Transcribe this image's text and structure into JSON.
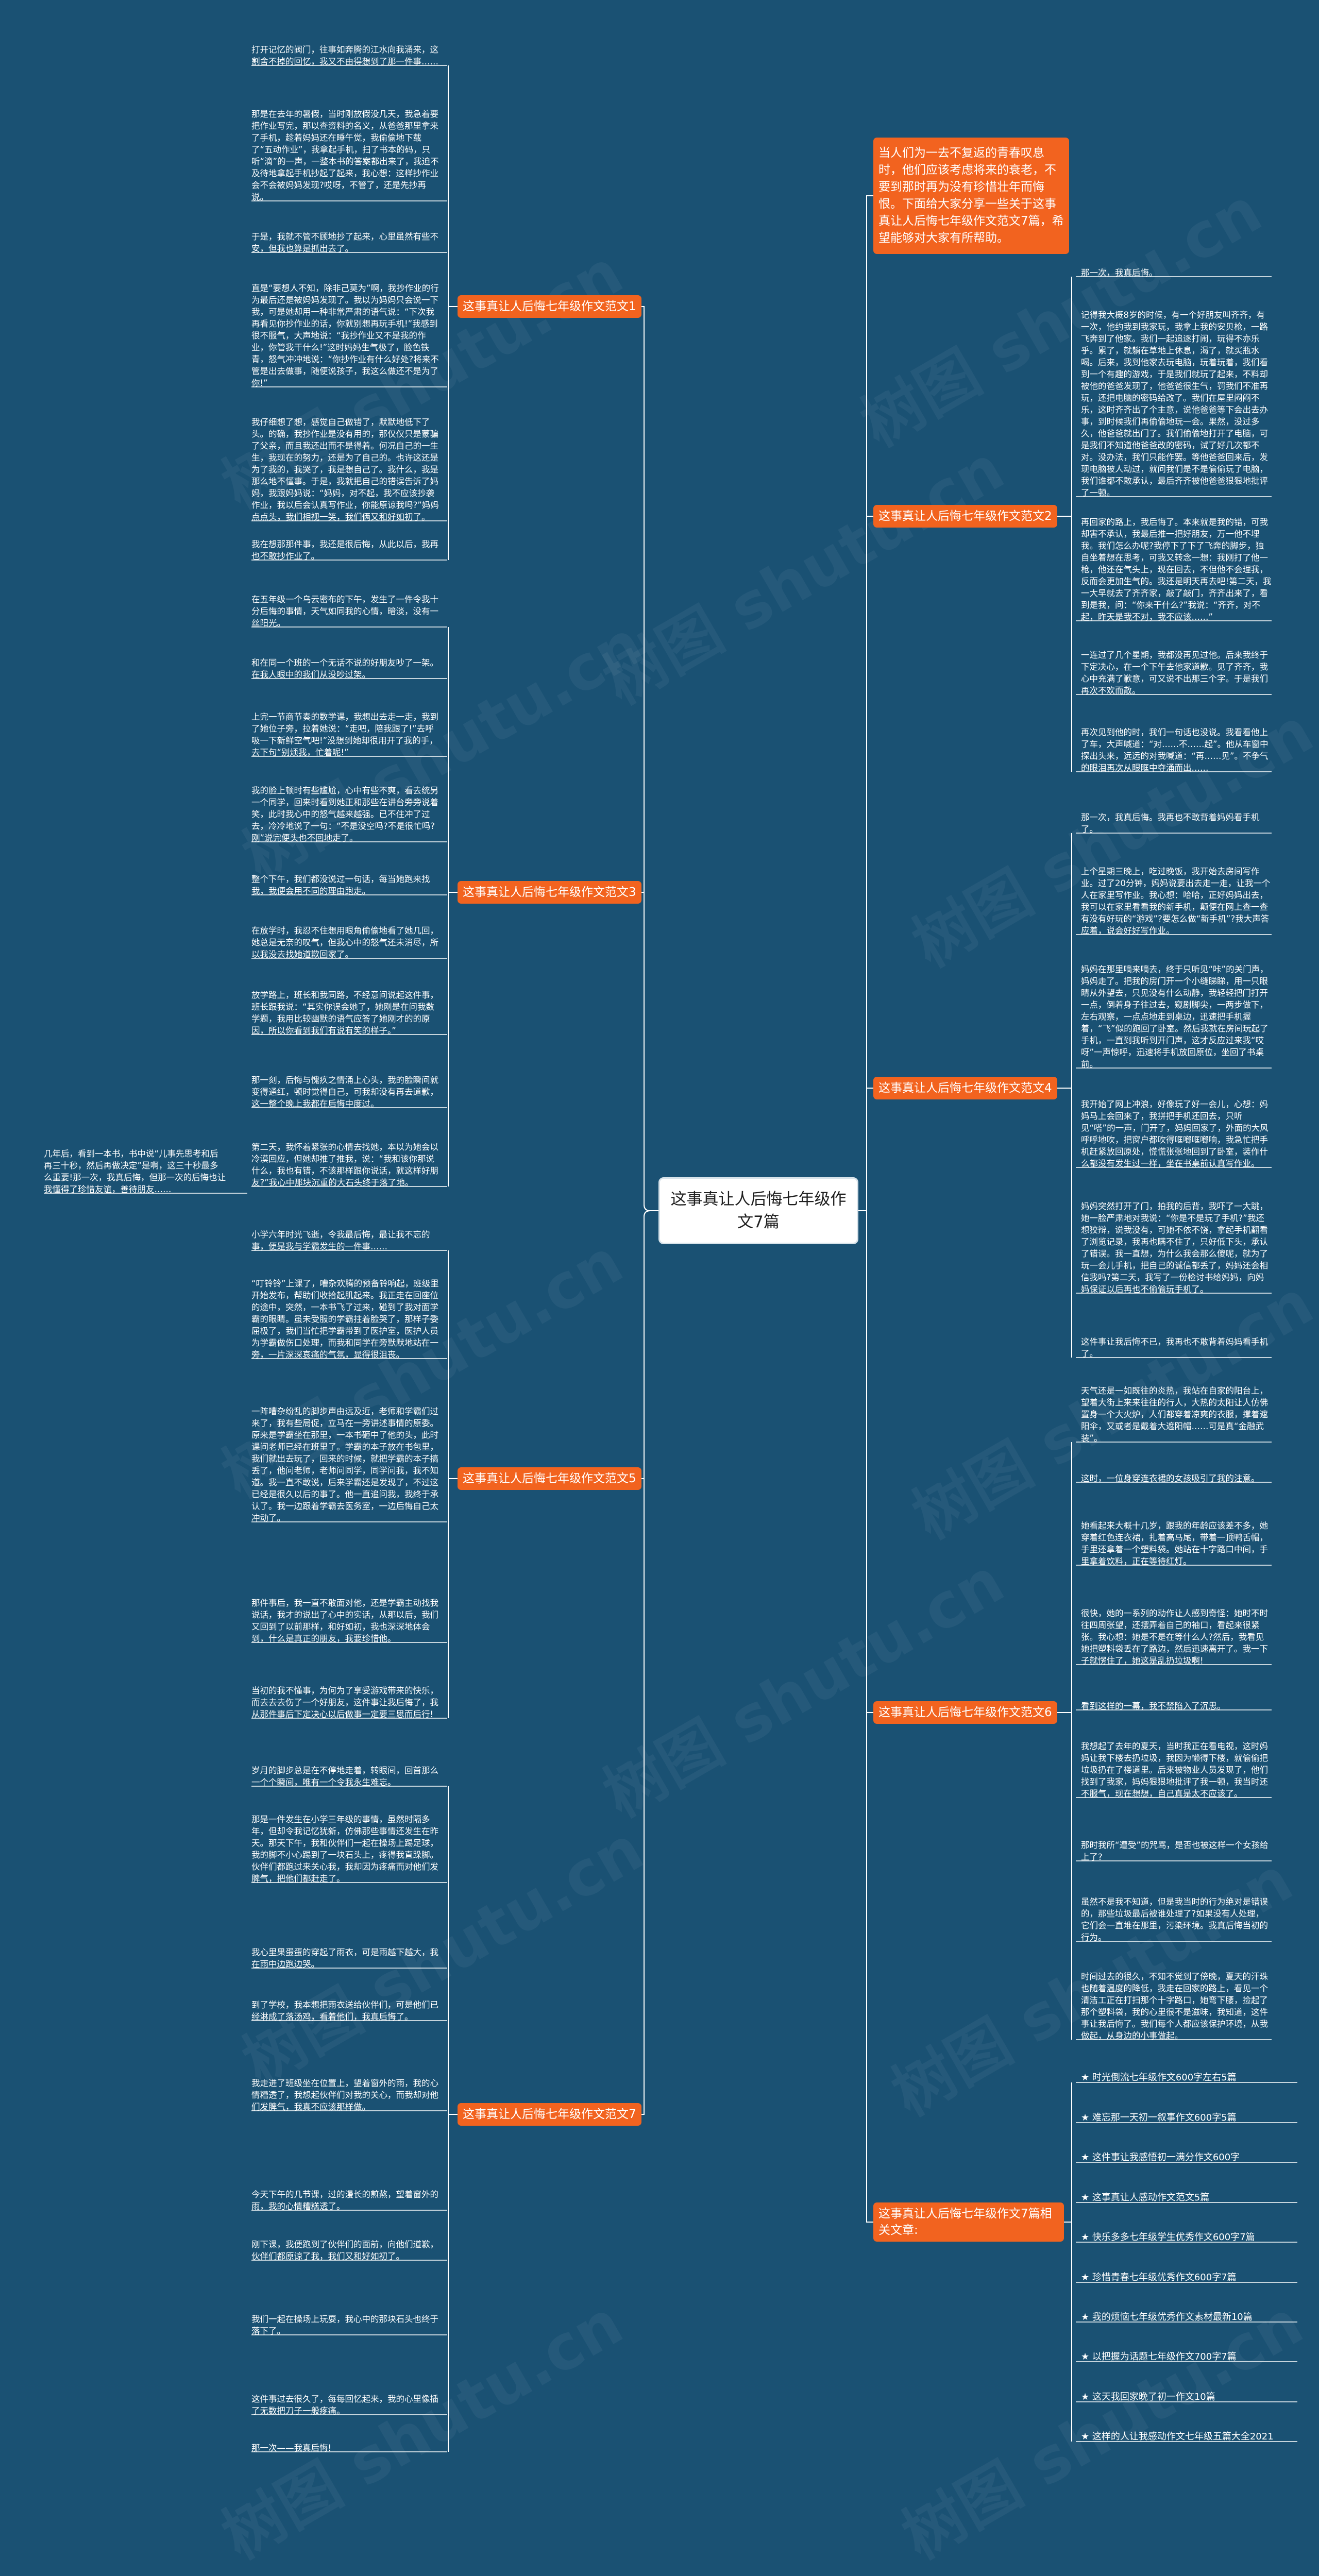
{
  "root": "这事真让人后悔七年级作文7篇",
  "intro": "当人们为一去不复返的青春叹息时，他们应该考虑将来的衰老，不要到那时再为没有珍惜壮年而悔恨。下面给大家分享一些关于这事真让人后悔七年级作文范文7篇，希望能够对大家有所帮助。",
  "branches": {
    "b1": "这事真让人后悔七年级作文范文1",
    "b2": "这事真让人后悔七年级作文范文2",
    "b3": "这事真让人后悔七年级作文范文3",
    "b4": "这事真让人后悔七年级作文范文4",
    "b5": "这事真让人后悔七年级作文范文5",
    "b6": "这事真让人后悔七年级作文范文6",
    "b7": "这事真让人后悔七年级作文范文7",
    "b8": "这事真让人后悔七年级作文7篇相关文章:"
  },
  "leaves_b1": [
    "打开记忆的阀门，往事如奔腾的江水向我涌来，这割舍不掉的回忆，我又不由得想到了那一件事……",
    "那是在去年的暑假，当时刚放假没几天，我急着要把作业写完，那以查资料的名义，从爸爸那里拿来了手机，趁着妈妈还在睡午觉，我偷偷地下载了“五动作业”，我拿起手机，扫了书本的码，只听“滴”的一声，一整本书的答案都出来了，我迫不及待地拿起手机抄起了起来，我心想：这样抄作业会不会被妈妈发现?哎呀，不管了，还是先抄再说。",
    "于是，我就不管不顾地抄了起来，心里虽然有些不安，但我也算是抓出去了。",
    "直是“要想人不知，除非己莫为”啊，我抄作业的行为最后还是被妈妈发现了。我以为妈妈只会说一下我，可是她却用一种非常严肃的语气说：“下次我再看见你抄作业的话，你就别想再玩手机!”我感到很不服气，大声地说：“我抄作业又不是我的作业，你管我干什么!”这时妈妈生气极了，脸色铁青，怒气冲冲地说：“你抄作业有什么好处?将来不管是出去做事，随便说孩子，我这么做还不是为了你!”",
    "我仔细想了想，感觉自己做错了，默默地低下了头。的确，我抄作业是没有用的，那仅仅只是蒙骗了父亲，而且我还出而不是得着。何况自己的一生生，我现在的努力，还是为了自己的。也许这还是为了我的，我哭了，我是想自己了。我什么，我是那么地不懂事。于是，我就把自己的错误告诉了妈妈，我跟妈妈说：“妈妈，对不起，我不应该抄袭作业，我以后会认真写作业，你能原谅我吗?”妈妈点点头，我们相视一笑，我们俩又和好如初了。",
    "我在想那那件事，我还是很后悔，从此以后，我再也不敢抄作业了。"
  ],
  "leaves_b2": [
    "那一次，我真后悔。",
    "记得我大概8岁的时候，有一个好朋友叫齐齐，有一次，他约我到我家玩，我拿上我的安贝枪，一路飞奔到了他家。我们一起追逐打闹，玩得不亦乐乎。累了，就躺在草地上休息，渴了，就买瓶水喝。后来，我到他家去玩电脑，玩着玩着，我们看到一个有趣的游戏，于是我们就玩了起来，不料却被他的爸爸发现了，他爸爸很生气，罚我们不准再玩，还把电脑的密码给改了。我们在屋里闷闷不乐，这时齐齐出了个主意，说他爸爸等下会出去办事，到时候我们再偷偷地玩一会。果然，没过多久，他爸爸就出门了。我们偷偷地打开了电脑，可是我们不知道他爸爸改的密码，试了好几次都不对。没办法，我们只能作罢。等他爸爸回来后，发现电脑被人动过，就问我们是不是偷偷玩了电脑，我们谁都不敢承认，最后齐齐被他爸爸狠狠地批评了一顿。",
    "再回家的路上，我后悔了。本来就是我的错，可我却害不承认，我最后推一把好朋友，万一他不埋我。我们怎么办呢?我停下了下了飞奔的脚步，独自坐着想在思考，可我又转念一想：我刚打了他一枪，他还在气头上，现在回去，不但他不会理我，反而会更加生气的。我还是明天再去吧!第二天，我一大早就去了齐齐家，敲了敲门，齐齐出来了，看到是我，问：“你来干什么?”我说：“齐齐，对不起，昨天是我不对，我不应该……”",
    "一连过了几个星期，我都没再见过他。后来我终于下定决心，在一个下午去他家道歉。见了齐齐，我心中充满了歉意，可又说不出那三个字。于是我们再次不欢而散。",
    "再次见到他的时，我们一句话也没说。我看看他上了车，大声喊道：“对……不……起”。他从车窗中探出头来，远远的对我喊道：“再……见”。不争气的眼泪再次从眼眶中夺涌而出……"
  ],
  "leaves_b3": [
    "在五年级一个乌云密布的下午，发生了一件令我十分后悔的事情，天气如同我的心情，暗淡，没有一丝阳光。",
    "和在同一个班的一个无话不说的好朋友吵了一架。在我人眼中的我们从没吵过架。",
    "上完一节商节奏的数学课，我想出去走一走，我到了她位子旁，拉着她说：“走吧，陪我跟了!”去呼吸一下新鲜空气吧!”没想到她却很用开了我的手，去下句“别烦我，忙着呢!”",
    "我的脸上顿时有些尴尬，心中有些不爽，看去统另一个同学，回来时看到她正和那些在讲台旁旁说着笑，此时我心中的怒气越来越强。已不住冲了过去，冷冷地说了一句：“不是没空吗?不是很忙吗?刚”说完便头也不回地走了。",
    "整个下午，我们都没说过一句话，每当她跑来找我，我便会用不同的理由跑走。",
    "在放学时，我忍不住想用眼角偷偷地看了她几回，她总是无奈的叹气，但我心中的怒气还未消尽，所以我没去找她道歉回家了。",
    "放学路上，班长和我同路，不经意间说起这件事，班长跟我说：“其实你误会她了，她刚是在问我数学题，我用比较幽默的语气应答了她刚才的的原因，所以你看到我们有说有笑的样子。”",
    "那一刻，后悔与愧疚之情涌上心头，我的脸瞬间就变得通红，顿时觉得自己，可我却没有再去道歉，这一整个晚上我都在后悔中度过。",
    "第二天，我怀着紧张的心情去找她，本以为她会以冷漠回应，但她却推了推我，说：“我和该你那说什么，我也有错，不该那样跟你说话，就这样好朋友?”我心中那块沉重的大石头终于落了地。"
  ],
  "side_leaf": "几年后，看到一本书，书中说“儿事先思考和后再三十秒，然后再做决定”是啊，这三十秒最多么重要!那一次，我真后悔，但那一次的后悔也让我懂得了珍惜友谊，善待朋友……",
  "leaves_b4": [
    "那一次，我真后悔。我再也不敢背着妈妈看手机了。",
    "上个星期三晚上，吃过晚饭，我开始去房间写作业。过了20分钟，妈妈说要出去走一走，让我一个人在家里写作业。我心想：哈哈，正好妈妈出去，我可以在家里看看我的新手机，颠便在网上查一查有没有好玩的“游戏”?要怎么做“新手机”?我大声答应着，说会好好写作业。",
    "妈妈在那里嘀来嘀去，终于只听见“咔”的关门声，妈妈走了。把我的房门开一个小缝睇睇，用一只眼睛从外望去，只见没有什么动静，我轻轻把门打开一点，倒着身子往过去，窥剧脚尖，一两步做下，左右观察，一点点地走到桌边，迅速把手机握着，“飞”似的跑回了卧室。然后我就在房间玩起了手机，一直到我听到开门声，这才反应过来我“哎呀”一声惊呼，迅速将手机放回原位，坐回了书桌前。",
    "我开始了网上冲浪，好像玩了好一会儿，心想：妈妈马上会回来了，我拼把手机还回去，只听见“嗒”的一声，门开了，妈妈回家了，外面的大风呼呼地吹，把窗户都吹得哐啷哐啷响，我急忙把手机赶紧放回原处，慌慌张张地回到了卧室，装作什么都没有发生过一样，坐在书桌前认真写作业。",
    "妈妈突然打开了门，拍我的后背，我吓了一大跳，她一脸严肃地对我说：“你是不是玩了手机?”我还想狡辩，说我没有，可她不依不饶，拿起手机翻看了浏览记录，我再也瞒不住了，只好低下头，承认了错误。我一直想，为什么我会那么傻呢，就为了玩一会儿手机，把自己的诚信都丢了，妈妈还会相信我吗?第二天，我写了一份检讨书给妈妈，向妈妈保证以后再也不偷偷玩手机了。",
    "这件事让我后悔不已，我再也不敢背着妈妈看手机了。"
  ],
  "leaves_b5": [
    "小学六年时光飞逝，令我最后悔，最让我不忘的事，便是我与学霸发生的一件事……",
    "“叮铃铃”上课了，嘈杂欢腾的预备铃响起，班级里开始发布，帮助们收拾起肌起来。我正走在回座位的途中，突然，一本书飞了过来，碰到了我对面学霸的眼睛。虽未受服的学霸拄着脸哭了，那样子委屈极了，我们当忙把学霸带到了医护室，医护人员为学霸做伤口处理，而我和同学在旁默默地站在一旁，一片深深哀痛的气氛，显得很沮丧。",
    "一阵嘈杂纷乱的脚步声由远及近，老师和学霸们过来了，我有些局促，立马在一旁讲述事情的原委。原来是学霸坐在那里，一本书砸中了他的头，此时课间老师已经在班里了。学霸的本子放在书包里，我们就出去玩了，回来的时候，就把学霸的本子搞丢了，他问老师，老师问同学，同学问我，我不知道。我一直不敢说，后来学霸还是发现了，不过这已经是很久以后的事了。他一直追问我，我终于承认了。我一边跟着学霸去医务室，一边后悔自己太冲动了。",
    "那件事后，我一直不敢面对他，还是学霸主动找我说话，我才的说出了心中的实话，从那以后，我们又回到了以前那样，和好如初，我也深深地体会到，什么是真正的朋友，我要珍惜他。",
    "当初的我不懂事，为何为了享受游戏带来的快乐，而去去去伤了一个好朋友，这件事让我后悔了，我从那件事后下定决心以后做事一定要三思而后行!"
  ],
  "leaves_b6": [
    "天气还是一如既往的炎热，我站在自家的阳台上，望着大街上来来往往的行人，大热的太阳让人仿佛置身一个大火炉，人们都穿着凉爽的衣服，撑着遮阳伞，又或者是戴着大遮阳帽……可是真“金融武装”。",
    "这时，一位身穿连衣裙的女孩吸引了我的注意。",
    "她看起来大概十几岁，跟我的年龄应该差不多，她穿着红色连衣裙，扎着高马尾，带着一顶鸭舌帽，手里还拿着一个塑料袋。她站在十字路口中间，手里拿着饮料，正在等待红灯。",
    "很快，她的一系列的动作让人感到奇怪：她时不时往四周张望，还摆弄着自己的袖口，看起来很紧张。我心想：她是不是在等什么人?然后，我看见她把塑料袋丢在了路边，然后迅速离开了。我一下子就愣住了，她这是乱扔垃圾啊!",
    "看到这样的一幕，我不禁陷入了沉思。",
    "我想起了去年的夏天，当时我正在看电视，这时妈妈让我下楼去扔垃圾，我因为懒得下楼，就偷偷把垃圾扔在了楼道里。后来被物业人员发现了，他们找到了我家，妈妈狠狠地批评了我一顿，我当时还不服气，现在想想，自己真是太不应该了。",
    "那时我所“遭受”的咒骂，是否也被这样一个女孩给上了?",
    "虽然不是我不知道，但是我当时的行为绝对是错误的，那些垃圾最后被谁处理了?如果没有人处理，它们会一直堆在那里，污染环境。我真后悔当初的行为。",
    "时间过去的很久，不知不觉到了傍晚，夏天的汗珠也随着温度的降低，我走在回家的路上，看见一个清洁工正在打扫那个十字路口，她弯下腰，捡起了那个塑料袋，我的心里很不是滋味，我知道，这件事让我后悔了。我们每个人都应该保护环境，从我做起，从身边的小事做起。"
  ],
  "leaves_b7": [
    "岁月的脚步总是在不停地走着，转眼间，回首那么一个个瞬间，唯有一个令我永生难忘。",
    "那是一件发生在小学三年级的事情，虽然时隔多年，但却令我记忆犹新，仿佛那些事情还发生在昨天。那天下午，我和伙伴们一起在操场上踢足球，我的脚不小心踢到了一块石头上，疼得我直跺脚。伙伴们都跑过来关心我，我却因为疼痛而对他们发脾气，把他们都赶走了。",
    "我心里果蛋蛋的穿起了雨衣，可是雨越下越大，我在雨中边跑边哭。",
    "到了学校，我本想把雨衣送给伙伴们，可是他们已经淋成了落汤鸡，看着他们，我真后悔了。",
    "我走进了班级坐在位置上，望着窗外的雨，我的心情糟透了，我想起伙伴们对我的关心，而我却对他们发脾气，我真不应该那样做。",
    "今天下午的几节课，过的漫长的煎熬，望着窗外的雨，我的心情糟糕透了。",
    "刚下课，我便跑到了伙伴们的面前，向他们道歉，伙伴们都原谅了我，我们又和好如初了。",
    "我们一起在操场上玩耍，我心中的那块石头也终于落下了。",
    "这件事过去很久了，每每回忆起来，我的心里像插了无数把刀子一般疼痛。",
    "那一次——我真后悔!"
  ],
  "links_b8": [
    "★ 时光倒流七年级作文600字左右5篇",
    "★ 难忘那一天初一叙事作文600字5篇",
    "★ 这件事让我感悟初一满分作文600字",
    "★ 这事真让人感动作文范文5篇",
    "★ 快乐多多七年级学生优秀作文600字7篇",
    "★ 珍惜青春七年级优秀作文600字7篇",
    "★ 我的烦恼七年级优秀作文素材最新10篇",
    "★ 以把握为话题七年级作文700字7篇",
    "★ 这天我回家晚了初一作文10篇",
    "★ 这样的人让我感动作文七年级五篇大全2021"
  ],
  "watermark": "树图 shutu.cn",
  "colors": {
    "background": "#1a5173",
    "branch": "#f2631f",
    "line": "#ffffff"
  }
}
